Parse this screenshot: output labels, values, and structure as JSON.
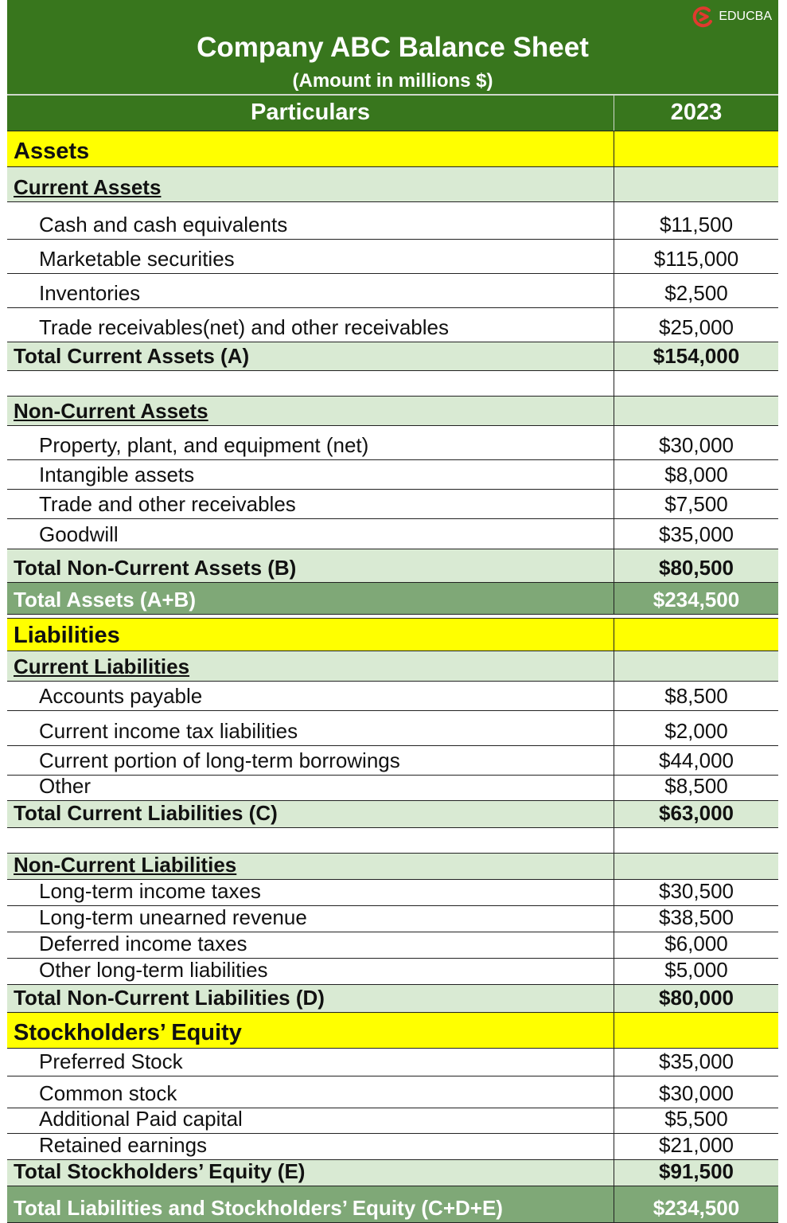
{
  "logo": {
    "text": "EDUCBA",
    "color": "#e03a2f"
  },
  "title": "Company ABC Balance Sheet",
  "subtitle": "(Amount in millions $)",
  "columns": [
    "Particulars",
    "2023"
  ],
  "colors": {
    "header": "#38761d",
    "section": "#ffff00",
    "subsection": "#d9ead3",
    "grand_total": "#7fa877"
  },
  "rows": [
    {
      "type": "section",
      "label": "Assets",
      "value": ""
    },
    {
      "type": "subsection",
      "label": "Current Assets",
      "value": ""
    },
    {
      "type": "item",
      "label": "Cash and cash equivalents",
      "value": "$11,500"
    },
    {
      "type": "item",
      "label": "Marketable securities",
      "value": "$115,000"
    },
    {
      "type": "item",
      "label": "Inventories",
      "value": "$2,500"
    },
    {
      "type": "item",
      "label": "Trade receivables(net) and other receivables",
      "value": "$25,000"
    },
    {
      "type": "total",
      "label": "Total Current Assets (A)",
      "value": "$154,000"
    },
    {
      "type": "blank",
      "label": "",
      "value": ""
    },
    {
      "type": "subsection",
      "label": "Non-Current Assets",
      "value": ""
    },
    {
      "type": "item",
      "label": "Property, plant, and equipment (net)",
      "value": "$30,000"
    },
    {
      "type": "item",
      "label": "Intangible assets",
      "value": "$8,000"
    },
    {
      "type": "item",
      "label": "Trade and other receivables",
      "value": "$7,500"
    },
    {
      "type": "item",
      "label": "Goodwill",
      "value": "$35,000"
    },
    {
      "type": "total",
      "label": "Total Non-Current Assets (B)",
      "value": "$80,500"
    },
    {
      "type": "grand",
      "label": "Total Assets (A+B)",
      "value": "$234,500"
    },
    {
      "type": "gap",
      "label": "",
      "value": ""
    },
    {
      "type": "section",
      "label": "Liabilities",
      "value": ""
    },
    {
      "type": "subsection",
      "label": "Current Liabilities",
      "value": ""
    },
    {
      "type": "item",
      "label": "Accounts payable",
      "value": "$8,500"
    },
    {
      "type": "item",
      "label": "Current income tax liabilities",
      "value": "$2,000"
    },
    {
      "type": "item",
      "label": "Current portion of long-term borrowings",
      "value": "$44,000"
    },
    {
      "type": "item",
      "label": "Other",
      "value": "$8,500"
    },
    {
      "type": "total",
      "label": "Total Current Liabilities (C)",
      "value": "$63,000"
    },
    {
      "type": "blank",
      "label": "",
      "value": ""
    },
    {
      "type": "subsection",
      "label": "Non-Current Liabilities",
      "value": ""
    },
    {
      "type": "item",
      "label": "Long-term income taxes",
      "value": "$30,500"
    },
    {
      "type": "item",
      "label": "Long-term unearned revenue",
      "value": "$38,500"
    },
    {
      "type": "item",
      "label": "Deferred income taxes",
      "value": "$6,000"
    },
    {
      "type": "item",
      "label": "Other long-term liabilities",
      "value": "$5,000"
    },
    {
      "type": "total",
      "label": "Total Non-Current Liabilities (D)",
      "value": "$80,000"
    },
    {
      "type": "section",
      "label": "Stockholders’ Equity",
      "value": ""
    },
    {
      "type": "item",
      "label": "Preferred Stock",
      "value": "$35,000"
    },
    {
      "type": "item",
      "label": "Common stock",
      "value": "$30,000"
    },
    {
      "type": "item",
      "label": "Additional Paid capital",
      "value": "$5,500"
    },
    {
      "type": "item",
      "label": "Retained earnings",
      "value": "$21,000"
    },
    {
      "type": "total",
      "label": "Total Stockholders’ Equity (E)",
      "value": "$91,500"
    },
    {
      "type": "grand",
      "label": "Total Liabilities and Stockholders’ Equity (C+D+E)",
      "value": "$234,500"
    }
  ]
}
